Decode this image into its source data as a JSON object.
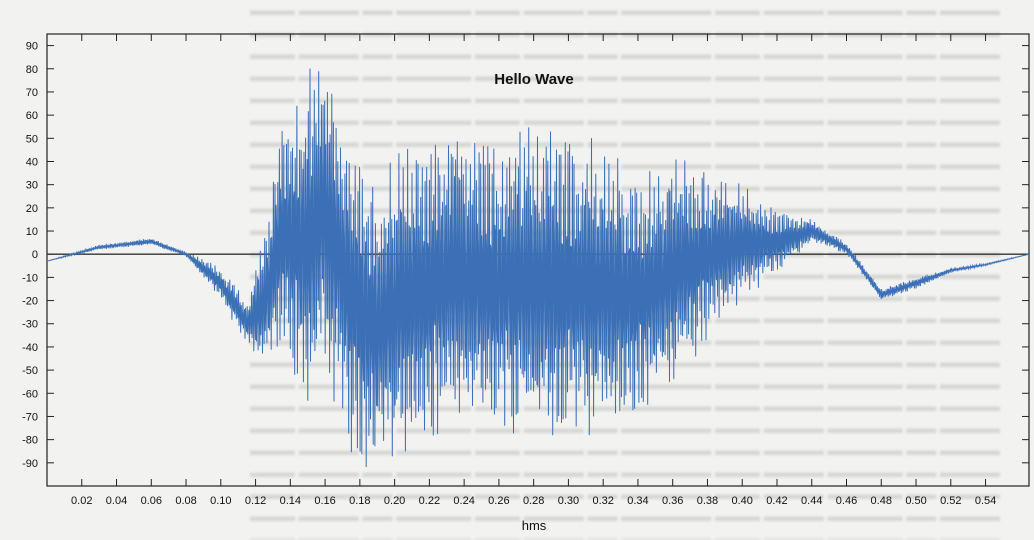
{
  "chart_data": {
    "type": "line",
    "title": "Hello Wave",
    "xlabel": "hms",
    "ylabel": "",
    "xlim": [
      0,
      0.565
    ],
    "ylim": [
      -100,
      95
    ],
    "x_ticks": [
      "0.02",
      "0.04",
      "0.06",
      "0.08",
      "0.10",
      "0.12",
      "0.14",
      "0.16",
      "0.18",
      "0.20",
      "0.22",
      "0.24",
      "0.26",
      "0.28",
      "0.30",
      "0.32",
      "0.34",
      "0.36",
      "0.38",
      "0.40",
      "0.42",
      "0.44",
      "0.46",
      "0.48",
      "0.50",
      "0.52",
      "0.54"
    ],
    "y_ticks": [
      "90",
      "80",
      "70",
      "60",
      "50",
      "40",
      "30",
      "20",
      "10",
      "0",
      "-10",
      "-20",
      "-30",
      "-40",
      "-50",
      "-60",
      "-70",
      "-80",
      "-90"
    ],
    "series": [
      {
        "color": "#3b6fb6",
        "envelope": {
          "x": [
            0.0,
            0.03,
            0.06,
            0.08,
            0.1,
            0.115,
            0.125,
            0.135,
            0.15,
            0.16,
            0.175,
            0.19,
            0.2,
            0.215,
            0.23,
            0.25,
            0.27,
            0.29,
            0.31,
            0.33,
            0.34,
            0.36,
            0.38,
            0.4,
            0.42,
            0.44,
            0.46,
            0.48,
            0.5,
            0.52,
            0.54,
            0.565
          ],
          "min": [
            -3,
            2,
            4,
            -1,
            -20,
            -40,
            -55,
            -45,
            -75,
            -50,
            -92,
            -98,
            -90,
            -85,
            -80,
            -75,
            -82,
            -85,
            -80,
            -75,
            -72,
            -60,
            -40,
            -20,
            -10,
            5,
            0,
            -20,
            -15,
            -8,
            -5,
            0
          ],
          "max": [
            -3,
            4,
            7,
            1,
            -5,
            -20,
            10,
            60,
            85,
            86,
            60,
            30,
            45,
            52,
            60,
            52,
            55,
            58,
            52,
            45,
            38,
            45,
            38,
            30,
            20,
            15,
            5,
            -15,
            -10,
            -6,
            -4,
            0
          ]
        }
      }
    ],
    "grid": false
  }
}
